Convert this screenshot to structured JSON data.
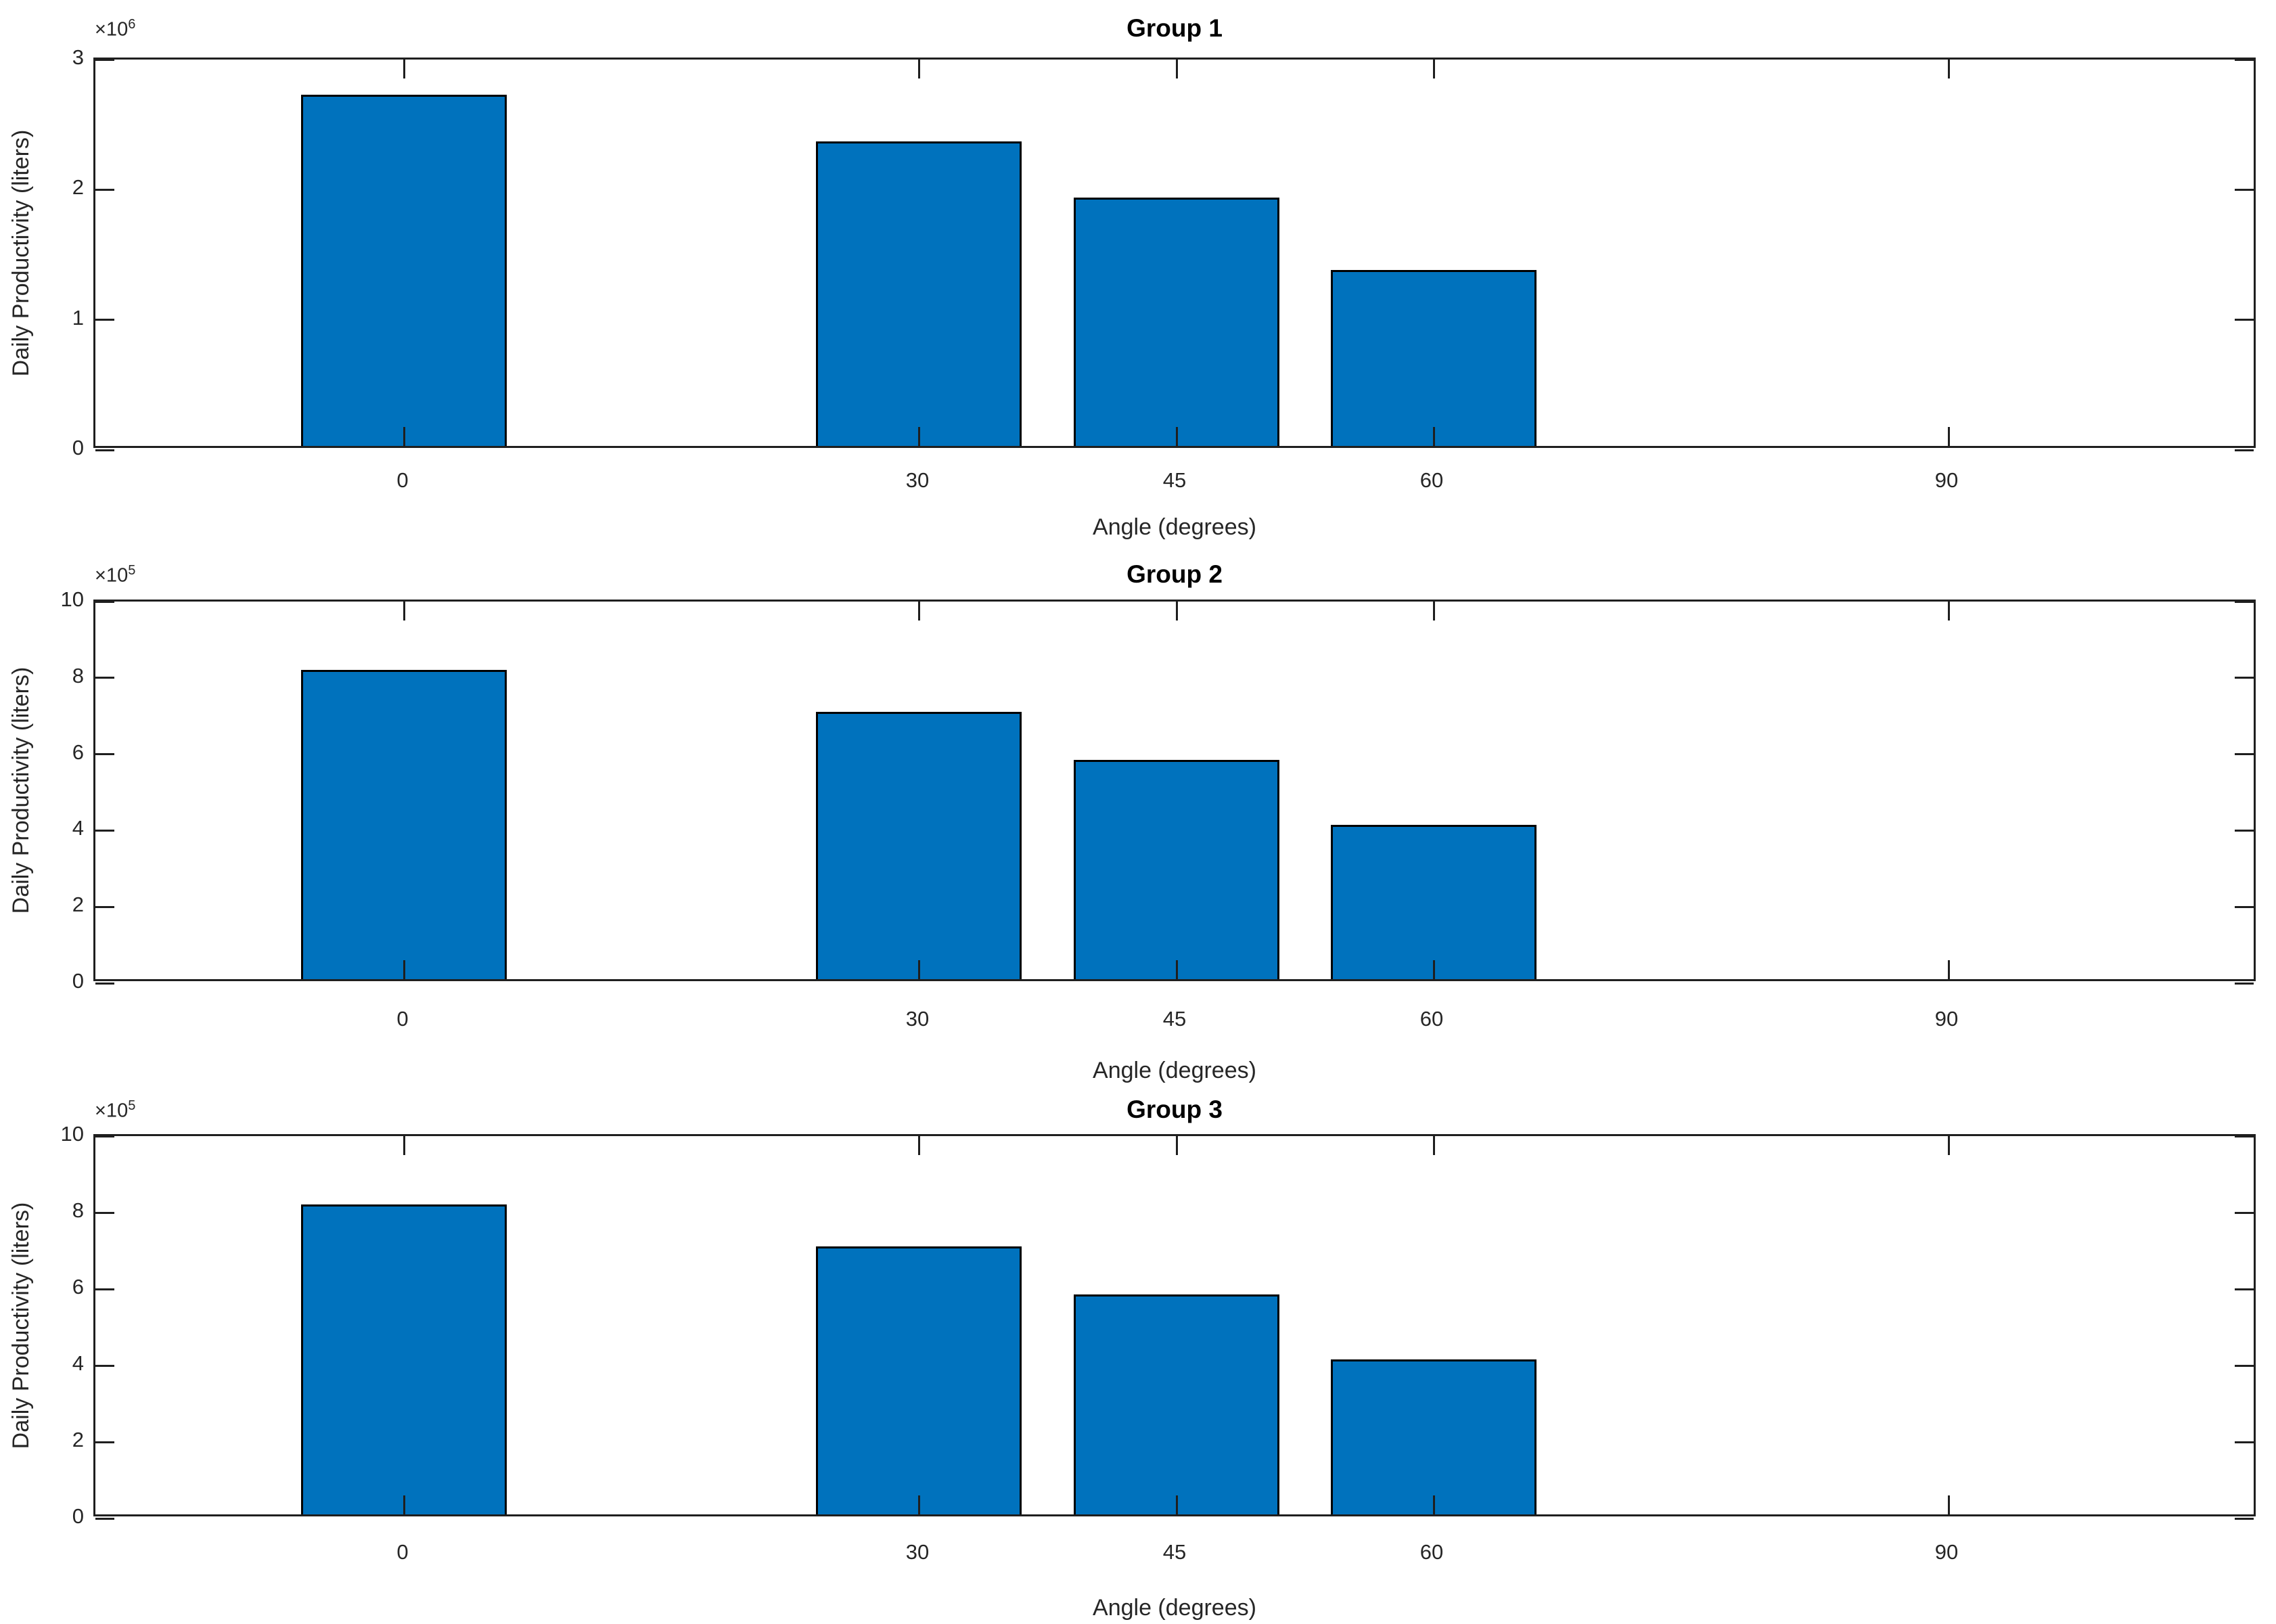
{
  "figure": {
    "background": "#ffffff",
    "bar_color": "#0072BD",
    "bar_edge_color": "#000000",
    "axis_color": "#1f1f1f",
    "tick_text_color": "#262626",
    "title_color": "#000000"
  },
  "chart_data": [
    {
      "type": "bar",
      "title": "Group 1",
      "xlabel": "Angle (degrees)",
      "ylabel": "Daily Productivity (liters)",
      "exp_prefix": "×10",
      "exp_power": "6",
      "categories": [
        0,
        30,
        45,
        60,
        90
      ],
      "x_tick_labels": [
        "0",
        "30",
        "45",
        "60",
        "90"
      ],
      "values": [
        2700000,
        2340000,
        1910000,
        1350000,
        0
      ],
      "xlim": [
        -18,
        108
      ],
      "ylim": [
        0,
        3000000
      ],
      "yticks": [
        0,
        1000000,
        2000000,
        3000000
      ],
      "y_tick_labels": [
        "0",
        "1",
        "2",
        "3"
      ],
      "bar_width_x": 12,
      "grid": false,
      "legend": null
    },
    {
      "type": "bar",
      "title": "Group 2",
      "xlabel": "Angle (degrees)",
      "ylabel": "Daily Productivity (liters)",
      "exp_prefix": "×10",
      "exp_power": "5",
      "categories": [
        0,
        30,
        45,
        60,
        90
      ],
      "x_tick_labels": [
        "0",
        "30",
        "45",
        "60",
        "90"
      ],
      "values": [
        810000,
        700000,
        575000,
        405000,
        0
      ],
      "xlim": [
        -18,
        108
      ],
      "ylim": [
        0,
        1000000
      ],
      "yticks": [
        0,
        200000,
        400000,
        600000,
        800000,
        1000000
      ],
      "y_tick_labels": [
        "0",
        "2",
        "4",
        "6",
        "8",
        "10"
      ],
      "bar_width_x": 12,
      "grid": false,
      "legend": null
    },
    {
      "type": "bar",
      "title": "Group 3",
      "xlabel": "Angle (degrees)",
      "ylabel": "Daily Productivity (liters)",
      "exp_prefix": "×10",
      "exp_power": "5",
      "categories": [
        0,
        30,
        45,
        60,
        90
      ],
      "x_tick_labels": [
        "0",
        "30",
        "45",
        "60",
        "90"
      ],
      "values": [
        810000,
        700000,
        575000,
        405000,
        0
      ],
      "xlim": [
        -18,
        108
      ],
      "ylim": [
        0,
        1000000
      ],
      "yticks": [
        0,
        200000,
        400000,
        600000,
        800000,
        1000000
      ],
      "y_tick_labels": [
        "0",
        "2",
        "4",
        "6",
        "8",
        "10"
      ],
      "bar_width_x": 12,
      "grid": false,
      "legend": null
    }
  ]
}
